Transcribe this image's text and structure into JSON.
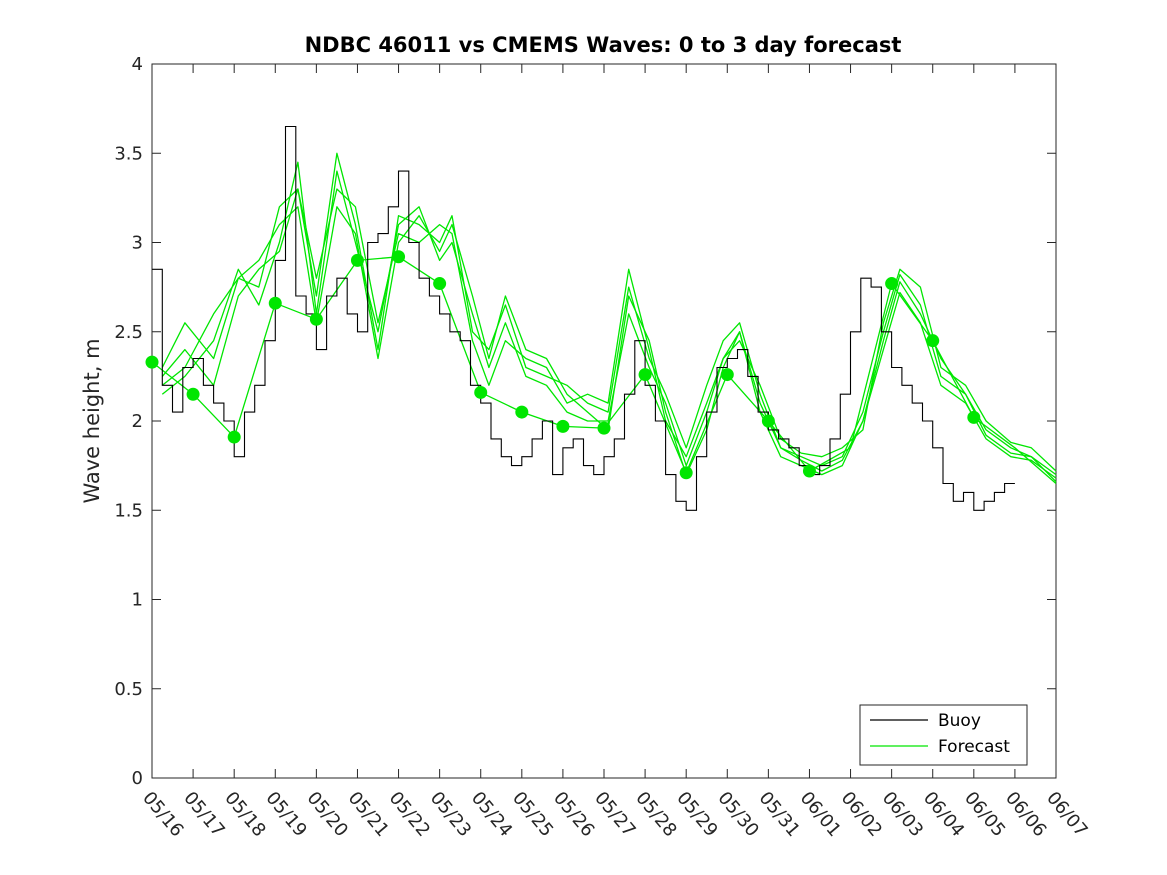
{
  "chart_data": {
    "type": "line",
    "title": "NDBC 46011 vs CMEMS Waves: 0 to 3 day forecast",
    "xlabel": "",
    "ylabel": "Wave height, m",
    "x_ticks": [
      "05/16",
      "05/17",
      "05/18",
      "05/19",
      "05/20",
      "05/21",
      "05/22",
      "05/23",
      "05/24",
      "05/25",
      "05/26",
      "05/27",
      "05/28",
      "05/29",
      "05/30",
      "05/31",
      "06/01",
      "06/02",
      "06/03",
      "06/04",
      "06/05",
      "06/06",
      "06/07"
    ],
    "y_ticks": [
      "0",
      "0.5",
      "1",
      "1.5",
      "2",
      "2.5",
      "3",
      "3.5",
      "4"
    ],
    "xlim_days": [
      0,
      22
    ],
    "ylim": [
      0,
      4
    ],
    "grid": false,
    "legend_position": "bottom-right",
    "legend": [
      {
        "label": "Buoy",
        "color": "#000000"
      },
      {
        "label": "Forecast",
        "color": "#00e600"
      }
    ],
    "colors": {
      "buoy": "#000000",
      "forecast": "#00e600",
      "marker": "#00e600"
    },
    "buoy_series": {
      "name": "Buoy",
      "day": [
        0,
        0.25,
        0.5,
        0.75,
        1,
        1.25,
        1.5,
        1.75,
        2,
        2.25,
        2.5,
        2.75,
        3,
        3.25,
        3.5,
        3.75,
        4,
        4.25,
        4.5,
        4.75,
        5,
        5.25,
        5.5,
        5.75,
        6,
        6.25,
        6.5,
        6.75,
        7,
        7.25,
        7.5,
        7.75,
        8,
        8.25,
        8.5,
        8.75,
        9,
        9.25,
        9.5,
        9.75,
        10,
        10.25,
        10.5,
        10.75,
        11,
        11.25,
        11.5,
        11.75,
        12,
        12.25,
        12.5,
        12.75,
        13,
        13.25,
        13.5,
        13.75,
        14,
        14.25,
        14.5,
        14.75,
        15,
        15.25,
        15.5,
        15.75,
        16,
        16.25,
        16.5,
        16.75,
        17,
        17.25,
        17.5,
        17.75,
        18,
        18.25,
        18.5,
        18.75,
        19,
        19.25,
        19.5,
        19.75,
        20,
        20.25,
        20.5,
        20.75,
        21,
        21.25
      ],
      "height_m": [
        2.85,
        2.2,
        2.05,
        2.3,
        2.35,
        2.2,
        2.1,
        2.0,
        1.8,
        2.05,
        2.2,
        2.45,
        2.9,
        3.65,
        2.7,
        2.6,
        2.4,
        2.7,
        2.8,
        2.6,
        2.5,
        3.0,
        3.05,
        3.2,
        3.4,
        3.0,
        2.8,
        2.7,
        2.6,
        2.5,
        2.45,
        2.2,
        2.1,
        1.9,
        1.8,
        1.75,
        1.8,
        1.9,
        2.0,
        1.7,
        1.85,
        1.9,
        1.75,
        1.7,
        1.8,
        1.9,
        2.15,
        2.45,
        2.2,
        2.0,
        1.7,
        1.55,
        1.5,
        1.8,
        2.05,
        2.3,
        2.35,
        2.4,
        2.25,
        2.05,
        1.95,
        1.9,
        1.85,
        1.75,
        1.7,
        1.75,
        1.9,
        2.15,
        2.5,
        2.8,
        2.75,
        2.5,
        2.3,
        2.2,
        2.1,
        2.0,
        1.85,
        1.65,
        1.55,
        1.6,
        1.5,
        1.55,
        1.6,
        1.65
      ]
    },
    "forecast_series": [
      {
        "name": "Forecast",
        "day": [
          0,
          1,
          2,
          3,
          4,
          5,
          6,
          7,
          8,
          9,
          10,
          11,
          12,
          13,
          14,
          15,
          16,
          17,
          18,
          19,
          20,
          21,
          22
        ],
        "height_m": [
          2.33,
          2.15,
          1.91,
          2.66,
          2.57,
          2.9,
          2.92,
          2.77,
          2.16,
          2.05,
          1.97,
          1.96,
          2.26,
          1.71,
          2.26,
          2.0,
          1.72,
          1.85,
          2.77,
          2.45,
          2.02,
          1.85,
          1.65
        ]
      },
      {
        "name": "",
        "day": [
          0.25,
          0.8,
          1.5,
          2.1,
          2.6,
          3.1,
          3.55,
          4.0,
          4.5,
          4.95,
          5.5,
          6.0,
          6.5,
          7.0,
          7.3,
          7.8,
          8.2,
          8.6,
          9.1,
          9.6,
          10.1,
          10.6,
          11.1,
          11.6,
          12.1,
          12.5,
          13.0,
          13.5,
          13.9,
          14.3,
          14.8,
          15.3,
          15.8,
          16.3,
          16.8,
          17.3,
          17.8,
          18.2,
          18.7,
          19.2,
          19.8,
          20.3,
          20.9,
          21.4,
          22.0
        ],
        "height_m": [
          2.2,
          2.3,
          2.6,
          2.8,
          2.75,
          3.2,
          3.3,
          2.7,
          3.5,
          3.1,
          2.4,
          3.15,
          3.1,
          3.0,
          3.15,
          2.5,
          2.4,
          2.65,
          2.3,
          2.25,
          2.2,
          2.1,
          2.05,
          2.75,
          2.35,
          2.15,
          1.85,
          2.2,
          2.45,
          2.55,
          2.15,
          1.85,
          1.8,
          1.75,
          1.8,
          2.05,
          2.5,
          2.82,
          2.65,
          2.25,
          2.15,
          1.95,
          1.85,
          1.8,
          1.7
        ]
      },
      {
        "name": "",
        "day": [
          0.25,
          0.8,
          1.5,
          2.1,
          2.6,
          3.1,
          3.55,
          4.0,
          4.5,
          4.95,
          5.5,
          6.0,
          6.5,
          7.0,
          7.3,
          7.8,
          8.2,
          8.6,
          9.1,
          9.6,
          10.1,
          10.6,
          11.1,
          11.6,
          12.1,
          12.5,
          13.0,
          13.5,
          13.9,
          14.3,
          14.8,
          15.3,
          15.8,
          16.3,
          16.8,
          17.3,
          17.8,
          18.2,
          18.7,
          19.2,
          19.8,
          20.3,
          20.9,
          21.4,
          22.0
        ],
        "height_m": [
          2.15,
          2.25,
          2.45,
          2.85,
          2.65,
          3.0,
          3.45,
          2.6,
          3.4,
          3.0,
          2.5,
          3.1,
          3.2,
          2.9,
          3.0,
          2.6,
          2.3,
          2.55,
          2.25,
          2.2,
          2.05,
          2.0,
          2.0,
          2.6,
          2.3,
          2.1,
          1.75,
          2.05,
          2.35,
          2.5,
          2.05,
          1.8,
          1.75,
          1.7,
          1.75,
          2.0,
          2.4,
          2.72,
          2.55,
          2.2,
          2.1,
          1.9,
          1.8,
          1.78,
          1.68
        ]
      },
      {
        "name": "",
        "day": [
          0.25,
          0.8,
          1.5,
          2.1,
          2.6,
          3.1,
          3.55,
          4.0,
          4.5,
          4.95,
          5.5,
          6.0,
          6.5,
          7.0,
          7.3,
          7.8,
          8.2,
          8.6,
          9.1,
          9.6,
          10.1,
          10.6,
          11.1,
          11.6,
          12.1,
          12.5,
          13.0,
          13.5,
          13.9,
          14.3,
          14.8,
          15.3,
          15.8,
          16.3,
          16.8,
          17.3,
          17.8,
          18.2,
          18.7,
          19.2,
          19.8,
          20.3,
          20.9,
          21.4,
          22.0
        ],
        "height_m": [
          2.25,
          2.4,
          2.2,
          2.7,
          2.85,
          2.95,
          3.3,
          2.8,
          3.3,
          3.2,
          2.55,
          3.05,
          3.0,
          3.1,
          3.05,
          2.45,
          2.2,
          2.45,
          2.35,
          2.3,
          2.1,
          2.15,
          2.1,
          2.85,
          2.4,
          2.0,
          1.8,
          2.1,
          2.35,
          2.45,
          2.2,
          1.9,
          1.82,
          1.8,
          1.85,
          1.95,
          2.55,
          2.85,
          2.75,
          2.3,
          2.2,
          2.0,
          1.88,
          1.85,
          1.72
        ]
      },
      {
        "name": "",
        "day": [
          0.25,
          0.8,
          1.5,
          2.1,
          2.6,
          3.1,
          3.55,
          4.0,
          4.5,
          4.95,
          5.5,
          6.0,
          6.5,
          7.0,
          7.3,
          7.8,
          8.2,
          8.6,
          9.1,
          9.6,
          10.1,
          10.6,
          11.1,
          11.6,
          12.1,
          12.5,
          13.0,
          13.5,
          13.9,
          14.3,
          14.8,
          15.3,
          15.8,
          16.3,
          16.8,
          17.3,
          17.8,
          18.2,
          18.7,
          19.2,
          19.8,
          20.3,
          20.9,
          21.4,
          22.0
        ],
        "height_m": [
          2.3,
          2.55,
          2.35,
          2.8,
          2.9,
          3.1,
          3.2,
          2.55,
          3.2,
          3.05,
          2.35,
          3.0,
          3.15,
          2.95,
          3.1,
          2.7,
          2.35,
          2.7,
          2.4,
          2.35,
          2.15,
          2.05,
          1.95,
          2.7,
          2.45,
          2.05,
          1.7,
          1.95,
          2.3,
          2.5,
          2.1,
          1.85,
          1.78,
          1.72,
          1.78,
          2.0,
          2.45,
          2.78,
          2.6,
          2.35,
          2.15,
          1.92,
          1.82,
          1.8,
          1.66
        ]
      }
    ],
    "markers": [
      {
        "day": 0,
        "height_m": 2.33
      },
      {
        "day": 1,
        "height_m": 2.15
      },
      {
        "day": 2,
        "height_m": 1.91
      },
      {
        "day": 3,
        "height_m": 2.66
      },
      {
        "day": 4,
        "height_m": 2.57
      },
      {
        "day": 5,
        "height_m": 2.9
      },
      {
        "day": 6,
        "height_m": 2.92
      },
      {
        "day": 7,
        "height_m": 2.77
      },
      {
        "day": 8,
        "height_m": 2.16
      },
      {
        "day": 9,
        "height_m": 2.05
      },
      {
        "day": 10,
        "height_m": 1.97
      },
      {
        "day": 11,
        "height_m": 1.96
      },
      {
        "day": 12,
        "height_m": 2.26
      },
      {
        "day": 13,
        "height_m": 1.71
      },
      {
        "day": 14,
        "height_m": 2.26
      },
      {
        "day": 15,
        "height_m": 2.0
      },
      {
        "day": 16,
        "height_m": 1.72
      },
      {
        "day": 18,
        "height_m": 2.77
      },
      {
        "day": 19,
        "height_m": 2.45
      },
      {
        "day": 20,
        "height_m": 2.02
      }
    ]
  }
}
